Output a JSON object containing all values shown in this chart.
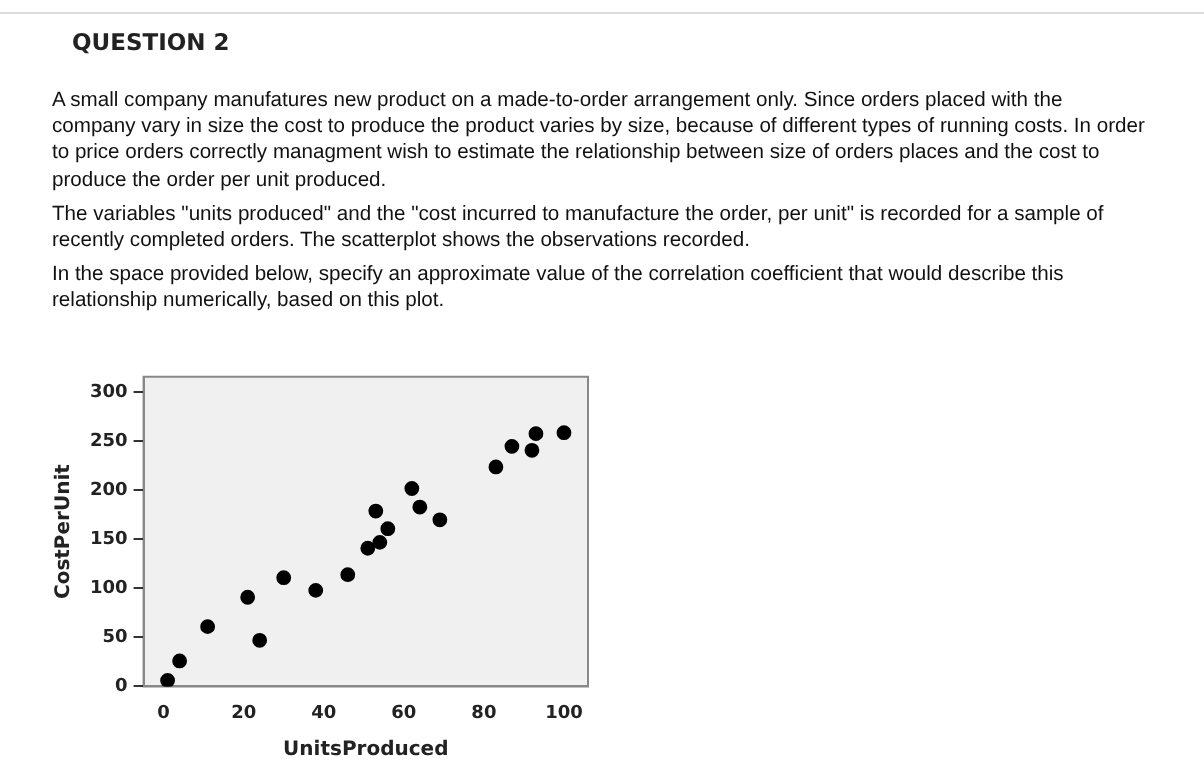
{
  "chart_data": {
    "type": "scatter",
    "title": "QUESTION 2",
    "annotations": [
      "A small company manufatures new product on a made-to-order arrangement only. Since orders placed with the company vary in size the cost to produce the product varies by size, because of different types of running costs. In order to price orders correctly managment  wish to estimate the relationship between size of orders places and the cost to produce the order per unit produced.",
      "The variables \"units produced\" and the \"cost incurred to manufacture the order, per unit\" is recorded for a sample of recently completed orders. The scatterplot shows the observations recorded.",
      "In the space provided below, specify an approximate value of the correlation coefficient that would describe this relationship numerically, based on this plot."
    ],
    "xlabel": "UnitsProduced",
    "ylabel": "CostPerUnit",
    "x": [
      1,
      4,
      11,
      21,
      24,
      30,
      38,
      46,
      51,
      53,
      54,
      56,
      62,
      64,
      69,
      83,
      87,
      92,
      93,
      100
    ],
    "values": [
      6,
      26,
      61,
      91,
      47,
      111,
      98,
      114,
      141,
      179,
      147,
      161,
      202,
      183,
      170,
      224,
      245,
      241,
      258,
      259
    ],
    "color": "#000000",
    "marker": "circle",
    "grid": false,
    "legend": false,
    "xlim": [
      -5,
      106
    ],
    "xticks": [
      0,
      20,
      40,
      60,
      80,
      100
    ],
    "ylim": [
      0,
      316
    ],
    "yticks": [
      0,
      50,
      100,
      150,
      200,
      250,
      300
    ]
  }
}
